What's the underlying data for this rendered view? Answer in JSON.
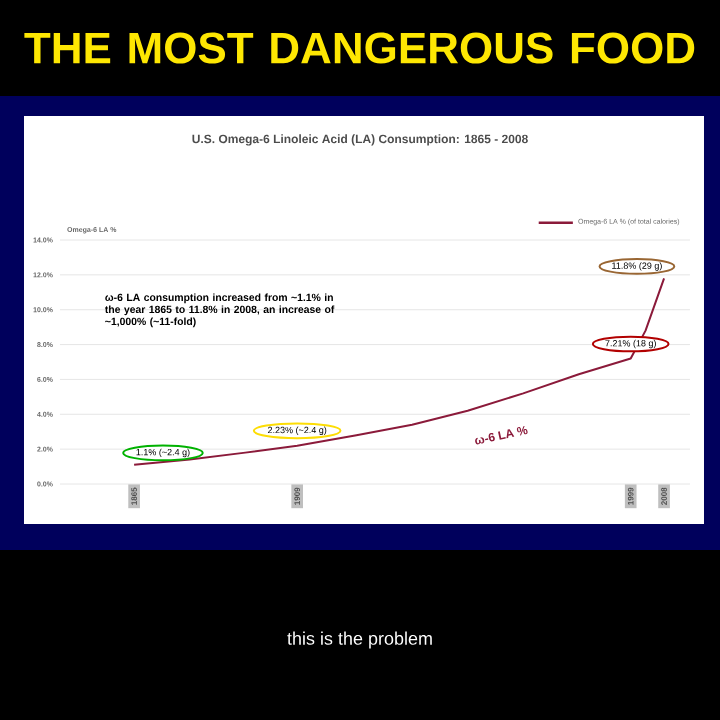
{
  "chart_data": {
    "type": "line",
    "title": "THE MOST DANGEROUS FOOD",
    "subtitle": "U.S. Omega-6 Linoleic Acid (LA) Consumption: 1865 - 2008",
    "ylabel": "Omega-6 LA %",
    "x": [
      1865,
      1880,
      1895,
      1909,
      1925,
      1940,
      1955,
      1970,
      1985,
      1999,
      2003,
      2008
    ],
    "series": [
      {
        "name": "Omega-6 LA % (of total calories)",
        "color": "#8b1a3a",
        "values": [
          1.1,
          1.4,
          1.8,
          2.2,
          2.8,
          3.4,
          4.2,
          5.2,
          6.3,
          7.2,
          8.8,
          11.8
        ]
      }
    ],
    "xlim": [
      1845,
      2015
    ],
    "xticks": [
      1865,
      1909,
      1999,
      2008
    ],
    "ylim": [
      0,
      14
    ],
    "yticks": [
      {
        "value": 0,
        "label": "0.0%"
      },
      {
        "value": 2,
        "label": "2.0%"
      },
      {
        "value": 4,
        "label": "4.0%"
      },
      {
        "value": 6,
        "label": "6.0%"
      },
      {
        "value": 8,
        "label": "8.0%"
      },
      {
        "value": 10,
        "label": "10.0%"
      },
      {
        "value": 12,
        "label": "12.0%"
      },
      {
        "value": 14,
        "label": "14.0%"
      }
    ],
    "grid": "y",
    "legend": "top right",
    "marker": "none",
    "line_style": "solid",
    "annotations": [
      "ω-6 LA consumption increased from ~1.1% in the year 1865 to 11.8% in 2008, an increase of ~1,000% (~11-fold)",
      "ω-6 LA %",
      {
        "text": "1.1% (~2.4 g)",
        "x": 1865,
        "y": 1.1
      },
      {
        "text": "2.23% (~2.4 g)",
        "x": 1909,
        "y": 2.23
      },
      {
        "text": "7.21% (18 g)",
        "x": 1999,
        "y": 7.21
      },
      {
        "text": "11.8% (29 g)",
        "x": 2008,
        "y": 11.8
      },
      "this is the problem"
    ]
  }
}
